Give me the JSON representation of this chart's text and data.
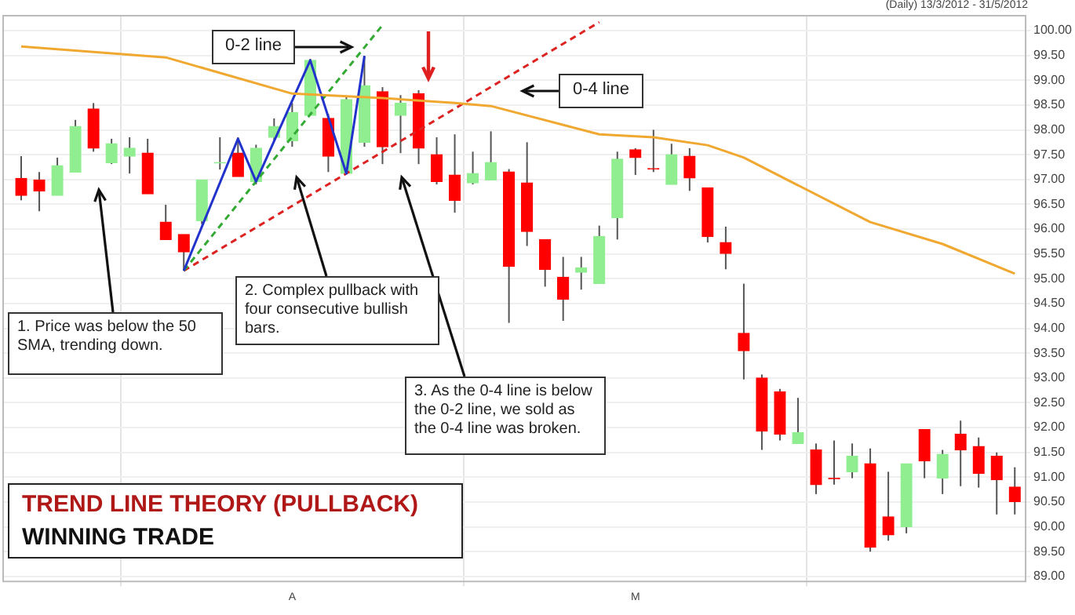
{
  "chart_data": {
    "type": "candlestick",
    "title": "TREND LINE THEORY (PULLBACK)",
    "subtitle": "WINNING TRADE",
    "annotations": [
      "(Daily) 13/3/2012 - 31/5/2012",
      "0-2 line",
      "0-4 line",
      "1. Price was below the 50 SMA, trending down.",
      "2. Complex pullback with four consecutive bullish bars.",
      "3. As the 0-4 line is below the 0-2 line, we sold as the 0-4 line was broken."
    ],
    "categories": [
      null,
      null,
      null,
      null,
      null,
      null,
      null,
      null,
      null,
      null,
      null,
      null,
      null,
      null,
      null,
      "A",
      null,
      null,
      null,
      null,
      null,
      null,
      null,
      null,
      null,
      null,
      null,
      null,
      null,
      null,
      null,
      null,
      null,
      null,
      "M",
      null,
      null,
      null,
      null,
      null,
      null,
      null,
      null,
      null,
      null,
      null,
      null,
      null,
      null,
      null,
      null,
      null,
      null,
      null,
      null,
      null
    ],
    "ohlc": [
      [
        97.02,
        97.47,
        96.58,
        96.68
      ],
      [
        96.99,
        97.15,
        96.36,
        96.77
      ],
      [
        96.68,
        97.44,
        96.68,
        97.28
      ],
      [
        97.15,
        98.2,
        97.15,
        98.07
      ],
      [
        98.42,
        98.54,
        97.56,
        97.63
      ],
      [
        97.34,
        97.82,
        97.31,
        97.72
      ],
      [
        97.47,
        97.85,
        97.12,
        97.63
      ],
      [
        97.53,
        97.82,
        96.71,
        96.71
      ],
      [
        96.14,
        96.49,
        95.79,
        95.79
      ],
      [
        95.89,
        95.89,
        95.16,
        95.54
      ],
      [
        96.17,
        96.99,
        96.1,
        96.99
      ],
      [
        97.33,
        97.85,
        97.2,
        97.34
      ],
      [
        97.53,
        97.85,
        97.06,
        97.06
      ],
      [
        96.96,
        97.7,
        96.9,
        97.63
      ],
      [
        97.85,
        98.23,
        97.78,
        98.07
      ],
      [
        97.78,
        98.54,
        97.66,
        98.35
      ],
      [
        98.29,
        99.43,
        98.29,
        99.4
      ],
      [
        98.23,
        98.32,
        97.15,
        97.47
      ],
      [
        97.12,
        98.67,
        97.12,
        98.61
      ],
      [
        97.75,
        99.49,
        97.66,
        98.89
      ],
      [
        98.77,
        98.86,
        97.31,
        97.66
      ],
      [
        98.29,
        98.7,
        97.53,
        98.54
      ],
      [
        98.73,
        98.8,
        97.31,
        97.63
      ],
      [
        97.5,
        97.85,
        96.9,
        96.96
      ],
      [
        97.09,
        97.91,
        96.33,
        96.58
      ],
      [
        96.93,
        97.56,
        96.9,
        97.12
      ],
      [
        96.99,
        97.97,
        96.99,
        97.34
      ],
      [
        97.15,
        97.21,
        94.11,
        95.25
      ],
      [
        96.93,
        97.75,
        95.66,
        95.95
      ],
      [
        95.79,
        95.79,
        94.84,
        95.19
      ],
      [
        95.03,
        95.44,
        94.15,
        94.59
      ],
      [
        95.13,
        95.44,
        94.78,
        95.22
      ],
      [
        94.9,
        96.07,
        94.9,
        95.85
      ],
      [
        96.23,
        97.56,
        95.79,
        97.41
      ],
      [
        97.6,
        97.63,
        97.09,
        97.44
      ],
      [
        97.22,
        98.0,
        97.15,
        97.21
      ],
      [
        96.9,
        97.72,
        96.9,
        97.5
      ],
      [
        97.47,
        97.63,
        96.77,
        97.03
      ],
      [
        96.83,
        96.83,
        95.73,
        95.85
      ],
      [
        95.73,
        96.05,
        95.19,
        95.51
      ],
      [
        93.9,
        94.9,
        92.97,
        93.55
      ],
      [
        93.0,
        93.07,
        91.55,
        91.93
      ],
      [
        92.72,
        92.78,
        91.74,
        91.87
      ],
      [
        91.68,
        92.6,
        91.68,
        91.9
      ],
      [
        91.55,
        91.68,
        90.66,
        90.85
      ],
      [
        90.98,
        91.74,
        90.85,
        90.97
      ],
      [
        91.11,
        91.68,
        90.98,
        91.42
      ],
      [
        91.27,
        91.58,
        89.5,
        89.59
      ],
      [
        90.2,
        91.11,
        89.72,
        89.84
      ],
      [
        90.0,
        91.27,
        89.87,
        91.27
      ],
      [
        91.96,
        91.96,
        90.98,
        91.33
      ],
      [
        90.98,
        91.55,
        90.66,
        91.46
      ],
      [
        91.87,
        92.14,
        90.82,
        91.55
      ],
      [
        91.62,
        91.8,
        90.79,
        91.08
      ],
      [
        91.42,
        91.5,
        90.25,
        90.95
      ],
      [
        90.8,
        91.2,
        90.25,
        90.51
      ]
    ],
    "colors": [
      "#ff0000",
      "#ff0000",
      "#90ee90",
      "#90ee90",
      "#ff0000",
      "#90ee90",
      "#90ee90",
      "#ff0000",
      "#ff0000",
      "#ff0000",
      "#90ee90",
      "#90ee90",
      "#ff0000",
      "#90ee90",
      "#90ee90",
      "#90ee90",
      "#90ee90",
      "#ff0000",
      "#90ee90",
      "#90ee90",
      "#ff0000",
      "#90ee90",
      "#ff0000",
      "#ff0000",
      "#ff0000",
      "#90ee90",
      "#90ee90",
      "#ff0000",
      "#ff0000",
      "#ff0000",
      "#ff0000",
      "#90ee90",
      "#90ee90",
      "#90ee90",
      "#ff0000",
      "#ff0000",
      "#90ee90",
      "#ff0000",
      "#ff0000",
      "#ff0000",
      "#ff0000",
      "#ff0000",
      "#ff0000",
      "#90ee90",
      "#ff0000",
      "#ff0000",
      "#90ee90",
      "#ff0000",
      "#ff0000",
      "#90ee90",
      "#ff0000",
      "#90ee90",
      "#ff0000",
      "#ff0000",
      "#ff0000",
      "#ff0000"
    ],
    "series": [
      {
        "type": "line",
        "color": "#f0a830",
        "line_style": "solid",
        "values": [
          99.68,
          null,
          null,
          null,
          null,
          null,
          null,
          null,
          99.46,
          null,
          null,
          null,
          null,
          null,
          null,
          98.73,
          null,
          null,
          null,
          null,
          98.64,
          null,
          null,
          null,
          98.54,
          null,
          98.48,
          null,
          null,
          null,
          null,
          null,
          97.91,
          null,
          null,
          97.85,
          null,
          null,
          97.69,
          null,
          97.44,
          null,
          null,
          null,
          null,
          null,
          null,
          96.14,
          null,
          null,
          null,
          95.7,
          null,
          null,
          95.25,
          95.1
        ]
      },
      {
        "type": "line",
        "color": "#2233cc",
        "line_style": "solid",
        "values": [
          null,
          null,
          null,
          null,
          null,
          null,
          null,
          null,
          null,
          95.16,
          null,
          null,
          97.82,
          96.96,
          null,
          null,
          99.4,
          null,
          97.12,
          99.49,
          null,
          null,
          null,
          null,
          null,
          null,
          null,
          null,
          null,
          null,
          null,
          null,
          null,
          null,
          null,
          null,
          null,
          null,
          null,
          null,
          null,
          null,
          null,
          null,
          null,
          null,
          null,
          null,
          null,
          null,
          null,
          null,
          null,
          null,
          null,
          null
        ]
      },
      {
        "type": "line",
        "color": "#33aa33",
        "line_style": "dashed",
        "values": [
          null,
          null,
          null,
          null,
          null,
          null,
          null,
          null,
          null,
          95.16,
          null,
          null,
          null,
          null,
          null,
          null,
          null,
          null,
          null,
          null,
          100.11,
          null,
          null,
          null,
          null,
          null,
          null,
          null,
          null,
          null,
          null,
          null,
          null,
          null,
          null,
          null,
          null,
          null,
          null,
          null,
          null,
          null,
          null,
          null,
          null,
          null,
          null,
          null,
          null,
          null,
          null,
          null,
          null,
          null,
          null,
          null
        ]
      },
      {
        "type": "line",
        "color": "#dd2222",
        "line_style": "dashed",
        "values": [
          null,
          null,
          null,
          null,
          null,
          null,
          null,
          null,
          null,
          95.16,
          null,
          null,
          null,
          null,
          null,
          null,
          null,
          null,
          null,
          null,
          null,
          null,
          null,
          null,
          null,
          null,
          null,
          null,
          null,
          null,
          null,
          null,
          100.17,
          null,
          null,
          null,
          null,
          null,
          null,
          null,
          null,
          null,
          null,
          null,
          null,
          null,
          null,
          null,
          null,
          null,
          null,
          null,
          null,
          null,
          null,
          null
        ]
      }
    ],
    "ylim": [
      88.9,
      100.3
    ],
    "yticks": [
      {
        "value": 89,
        "label": "89.00"
      },
      {
        "value": 89.5,
        "label": "89.50"
      },
      {
        "value": 90,
        "label": "90.00"
      },
      {
        "value": 90.5,
        "label": "90.50"
      },
      {
        "value": 91,
        "label": "91.00"
      },
      {
        "value": 91.5,
        "label": "91.50"
      },
      {
        "value": 92,
        "label": "92.00"
      },
      {
        "value": 92.5,
        "label": "92.50"
      },
      {
        "value": 93,
        "label": "93.00"
      },
      {
        "value": 93.5,
        "label": "93.50"
      },
      {
        "value": 94,
        "label": "94.00"
      },
      {
        "value": 94.5,
        "label": "94.50"
      },
      {
        "value": 95,
        "label": "95.00"
      },
      {
        "value": 95.5,
        "label": "95.50"
      },
      {
        "value": 96,
        "label": "96.00"
      },
      {
        "value": 96.5,
        "label": "96.50"
      },
      {
        "value": 97,
        "label": "97.00"
      },
      {
        "value": 97.5,
        "label": "97.50"
      },
      {
        "value": 98,
        "label": "98.00"
      },
      {
        "value": 98.5,
        "label": "98.50"
      },
      {
        "value": 99,
        "label": "99.00"
      },
      {
        "value": 99.5,
        "label": "99.50"
      },
      {
        "value": 100,
        "label": "100.00"
      }
    ],
    "grid": true
  }
}
